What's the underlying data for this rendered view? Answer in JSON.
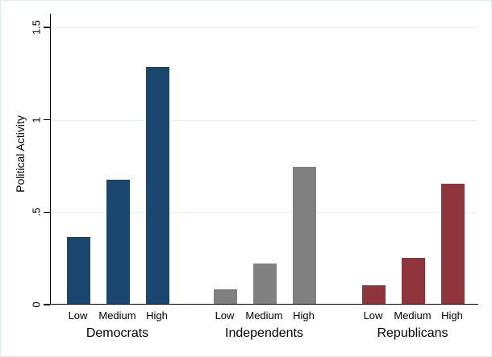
{
  "chart_data": {
    "type": "bar",
    "ylabel": "Political Activity",
    "ylim": [
      0,
      1.5
    ],
    "yticks": [
      0,
      0.5,
      1,
      1.5
    ],
    "ytick_labels": [
      "0",
      ".5",
      "1",
      "1.5"
    ],
    "categories": [
      "Low",
      "Medium",
      "High"
    ],
    "groups": [
      {
        "name": "Democrats",
        "color": "#1a476f",
        "values": [
          0.36,
          0.67,
          1.28
        ]
      },
      {
        "name": "Independents",
        "color": "#808080",
        "values": [
          0.08,
          0.22,
          0.74
        ]
      },
      {
        "name": "Republicans",
        "color": "#90353b",
        "values": [
          0.1,
          0.25,
          0.65
        ]
      }
    ],
    "grid": true,
    "legend": "none"
  },
  "colors": {
    "axis": "#000000",
    "gridline": "#e8f1f2",
    "figure_border": "#e4edee",
    "background": "#ffffff"
  }
}
